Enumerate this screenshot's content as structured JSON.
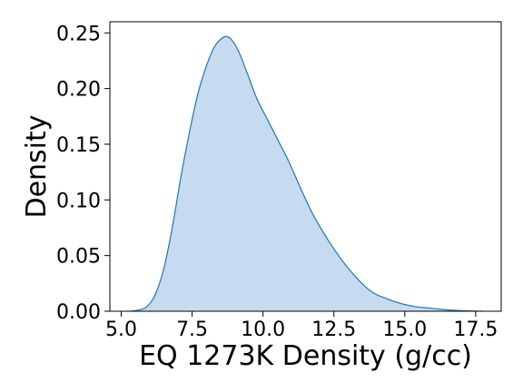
{
  "chart_data": {
    "type": "area",
    "title": "",
    "xlabel": "EQ 1273K Density (g/cc)",
    "ylabel": "Density",
    "xlim": [
      4.6,
      18.4
    ],
    "ylim": [
      0,
      0.26
    ],
    "grid": false,
    "legend": "none",
    "x_ticks": [
      5.0,
      7.5,
      10.0,
      12.5,
      15.0,
      17.5
    ],
    "x_tick_labels": [
      "5.0",
      "7.5",
      "10.0",
      "12.5",
      "15.0",
      "17.5"
    ],
    "y_ticks": [
      0.0,
      0.05,
      0.1,
      0.15,
      0.2,
      0.25
    ],
    "y_tick_labels": [
      "0.00",
      "0.05",
      "0.10",
      "0.15",
      "0.20",
      "0.25"
    ],
    "colors": {
      "line": "#1f77b4",
      "fill": "#c6dbef",
      "axis": "#000000"
    },
    "series": [
      {
        "x": [
          5.3,
          5.6,
          5.9,
          6.2,
          6.5,
          6.8,
          7.1,
          7.4,
          7.7,
          8.0,
          8.3,
          8.6,
          8.8,
          9.0,
          9.2,
          9.5,
          9.8,
          10.1,
          10.5,
          10.9,
          11.3,
          11.7,
          12.1,
          12.5,
          12.9,
          13.3,
          13.7,
          14.0,
          14.3,
          14.6,
          15.0,
          15.4,
          15.8,
          16.2,
          16.6,
          17.0,
          17.4,
          17.7
        ],
        "y": [
          0.0,
          0.001,
          0.004,
          0.015,
          0.038,
          0.075,
          0.12,
          0.16,
          0.195,
          0.22,
          0.238,
          0.246,
          0.246,
          0.24,
          0.23,
          0.21,
          0.19,
          0.175,
          0.155,
          0.135,
          0.112,
          0.09,
          0.072,
          0.056,
          0.042,
          0.03,
          0.02,
          0.015,
          0.012,
          0.009,
          0.006,
          0.004,
          0.003,
          0.002,
          0.001,
          0.0005,
          0.0002,
          0.0
        ]
      }
    ]
  }
}
